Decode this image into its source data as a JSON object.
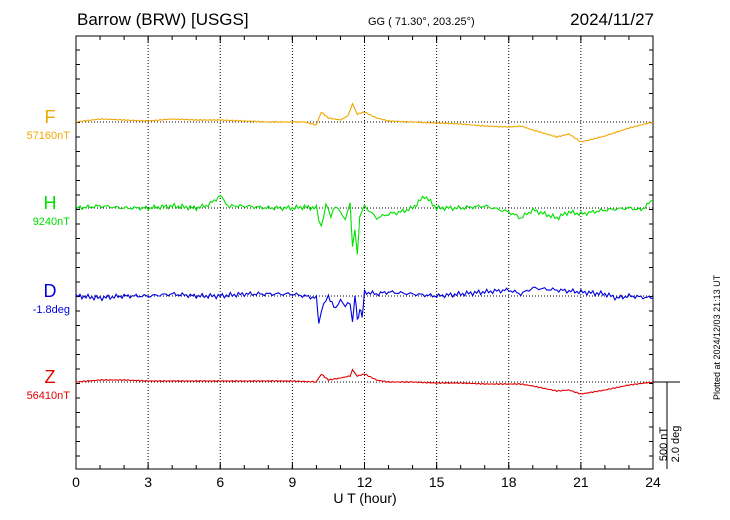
{
  "header": {
    "station": "Barrow (BRW)  [USGS]",
    "coords": "GG ( 71.30°, 203.25°)",
    "date": "2024/11/27"
  },
  "footer": {
    "plotted": "Plotted at 2024/12/03 21:13 UT",
    "scale_nt": "500 nT",
    "scale_deg": "2.0 deg"
  },
  "colors": {
    "F": "#f0a800",
    "H": "#00e000",
    "D": "#0000e0",
    "Z": "#e00000"
  },
  "chart_data": {
    "type": "line",
    "xlabel": "U T (hour)",
    "xlim": [
      0,
      24
    ],
    "xticks": [
      "0",
      "3",
      "6",
      "9",
      "12",
      "15",
      "18",
      "21",
      "24"
    ],
    "components": [
      {
        "name": "F",
        "baseline_label": "57160nT",
        "points": [
          [
            0,
            0
          ],
          [
            1,
            3
          ],
          [
            2,
            2
          ],
          [
            3,
            1
          ],
          [
            4,
            3
          ],
          [
            5,
            2
          ],
          [
            6,
            2
          ],
          [
            7,
            1
          ],
          [
            8,
            0
          ],
          [
            9,
            0
          ],
          [
            9.5,
            0
          ],
          [
            10,
            -3
          ],
          [
            10.2,
            10
          ],
          [
            10.5,
            4
          ],
          [
            11,
            2
          ],
          [
            11.3,
            6
          ],
          [
            11.5,
            18
          ],
          [
            11.7,
            8
          ],
          [
            12,
            10
          ],
          [
            12.5,
            4
          ],
          [
            13,
            1
          ],
          [
            14,
            0
          ],
          [
            15,
            -1
          ],
          [
            16,
            -2
          ],
          [
            17,
            -4
          ],
          [
            18,
            -5
          ],
          [
            18.5,
            -4
          ],
          [
            19,
            -8
          ],
          [
            20,
            -15
          ],
          [
            20.5,
            -12
          ],
          [
            21,
            -20
          ],
          [
            22,
            -14
          ],
          [
            23,
            -6
          ],
          [
            24,
            0
          ]
        ]
      },
      {
        "name": "H",
        "baseline_label": "9240nT",
        "points": [
          [
            0,
            0
          ],
          [
            1,
            2
          ],
          [
            2,
            0
          ],
          [
            3,
            0
          ],
          [
            4,
            2
          ],
          [
            5,
            0
          ],
          [
            5.5,
            3
          ],
          [
            6,
            12
          ],
          [
            6.3,
            2
          ],
          [
            7,
            2
          ],
          [
            8,
            0
          ],
          [
            9,
            0
          ],
          [
            9.5,
            1
          ],
          [
            10,
            0
          ],
          [
            10.2,
            -20
          ],
          [
            10.4,
            4
          ],
          [
            10.6,
            -8
          ],
          [
            10.8,
            2
          ],
          [
            11,
            -4
          ],
          [
            11.2,
            -12
          ],
          [
            11.4,
            6
          ],
          [
            11.5,
            -40
          ],
          [
            11.6,
            -20
          ],
          [
            11.7,
            -48
          ],
          [
            11.8,
            -8
          ],
          [
            12,
            2
          ],
          [
            12.5,
            -10
          ],
          [
            13,
            -6
          ],
          [
            13.5,
            -4
          ],
          [
            14,
            0
          ],
          [
            14.5,
            12
          ],
          [
            15,
            0
          ],
          [
            16,
            0
          ],
          [
            17,
            2
          ],
          [
            18,
            -4
          ],
          [
            18.5,
            -10
          ],
          [
            19,
            -2
          ],
          [
            20,
            -10
          ],
          [
            20.5,
            -4
          ],
          [
            21,
            -6
          ],
          [
            22,
            -2
          ],
          [
            23,
            0
          ],
          [
            23.5,
            -2
          ],
          [
            24,
            8
          ]
        ]
      },
      {
        "name": "D",
        "baseline_label": "-1.8deg",
        "points": [
          [
            0,
            0
          ],
          [
            1,
            -2
          ],
          [
            2,
            0
          ],
          [
            3,
            0
          ],
          [
            4,
            2
          ],
          [
            5,
            0
          ],
          [
            6,
            0
          ],
          [
            7,
            2
          ],
          [
            8,
            2
          ],
          [
            9,
            2
          ],
          [
            9.5,
            0
          ],
          [
            10,
            -2
          ],
          [
            10.1,
            -26
          ],
          [
            10.3,
            -8
          ],
          [
            10.5,
            0
          ],
          [
            10.8,
            -12
          ],
          [
            11,
            -4
          ],
          [
            11.2,
            -10
          ],
          [
            11.4,
            -6
          ],
          [
            11.5,
            -28
          ],
          [
            11.6,
            2
          ],
          [
            11.7,
            -24
          ],
          [
            11.8,
            -14
          ],
          [
            11.9,
            -20
          ],
          [
            12,
            4
          ],
          [
            12.5,
            2
          ],
          [
            13,
            4
          ],
          [
            14,
            2
          ],
          [
            15,
            0
          ],
          [
            16,
            2
          ],
          [
            17,
            4
          ],
          [
            18,
            6
          ],
          [
            18.5,
            2
          ],
          [
            19,
            8
          ],
          [
            20,
            6
          ],
          [
            21,
            4
          ],
          [
            22,
            2
          ],
          [
            22.5,
            -2
          ],
          [
            23,
            0
          ],
          [
            24,
            -2
          ]
        ]
      },
      {
        "name": "Z",
        "baseline_label": "56410nT",
        "points": [
          [
            0,
            0
          ],
          [
            1,
            2
          ],
          [
            2,
            2
          ],
          [
            3,
            1
          ],
          [
            4,
            1
          ],
          [
            5,
            1
          ],
          [
            6,
            1
          ],
          [
            7,
            1
          ],
          [
            8,
            1
          ],
          [
            9,
            1
          ],
          [
            10,
            0
          ],
          [
            10.2,
            8
          ],
          [
            10.5,
            2
          ],
          [
            11,
            4
          ],
          [
            11.4,
            6
          ],
          [
            11.5,
            12
          ],
          [
            11.7,
            6
          ],
          [
            12,
            8
          ],
          [
            12.5,
            2
          ],
          [
            13,
            0
          ],
          [
            14,
            0
          ],
          [
            15,
            -1
          ],
          [
            16,
            -1
          ],
          [
            17,
            -2
          ],
          [
            18,
            -2
          ],
          [
            18.5,
            -2
          ],
          [
            19,
            -4
          ],
          [
            20,
            -9
          ],
          [
            20.5,
            -8
          ],
          [
            21,
            -12
          ],
          [
            22,
            -8
          ],
          [
            23,
            -3
          ],
          [
            24,
            0
          ]
        ]
      }
    ]
  }
}
